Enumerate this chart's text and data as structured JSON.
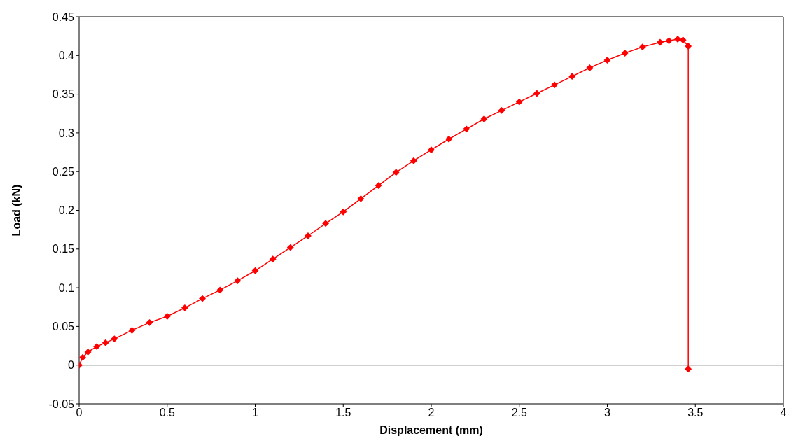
{
  "chart_data": {
    "type": "line",
    "xlabel": "Displacement (mm)",
    "ylabel": "Load (kN)",
    "series": [
      {
        "color": "#ff0000",
        "marker": "diamond",
        "line_style": "solid",
        "x": [
          0,
          0.02,
          0.05,
          0.1,
          0.15,
          0.2,
          0.3,
          0.4,
          0.5,
          0.6,
          0.7,
          0.8,
          0.9,
          1.0,
          1.1,
          1.2,
          1.3,
          1.4,
          1.5,
          1.6,
          1.7,
          1.8,
          1.9,
          2.0,
          2.1,
          2.2,
          2.3,
          2.4,
          2.5,
          2.6,
          2.7,
          2.8,
          2.9,
          3.0,
          3.1,
          3.2,
          3.3,
          3.35,
          3.4,
          3.43,
          3.46,
          3.46
        ],
        "values": [
          0,
          0.01,
          0.017,
          0.024,
          0.029,
          0.034,
          0.045,
          0.055,
          0.063,
          0.074,
          0.086,
          0.097,
          0.109,
          0.122,
          0.137,
          0.152,
          0.167,
          0.183,
          0.198,
          0.215,
          0.232,
          0.249,
          0.264,
          0.278,
          0.292,
          0.305,
          0.318,
          0.329,
          0.34,
          0.351,
          0.362,
          0.373,
          0.384,
          0.394,
          0.403,
          0.411,
          0.417,
          0.419,
          0.421,
          0.42,
          0.412,
          -0.005
        ]
      }
    ],
    "xlim": [
      0,
      4
    ],
    "xticks": [
      0,
      0.5,
      1,
      1.5,
      2,
      2.5,
      3,
      3.5,
      4
    ],
    "ylim": [
      -0.05,
      0.45
    ],
    "yticks": [
      -0.05,
      0,
      0.05,
      0.1,
      0.15,
      0.2,
      0.25,
      0.3,
      0.35,
      0.4,
      0.45
    ],
    "ref_lines": [
      {
        "axis": "y",
        "value": 0,
        "color": "#000000"
      }
    ]
  }
}
